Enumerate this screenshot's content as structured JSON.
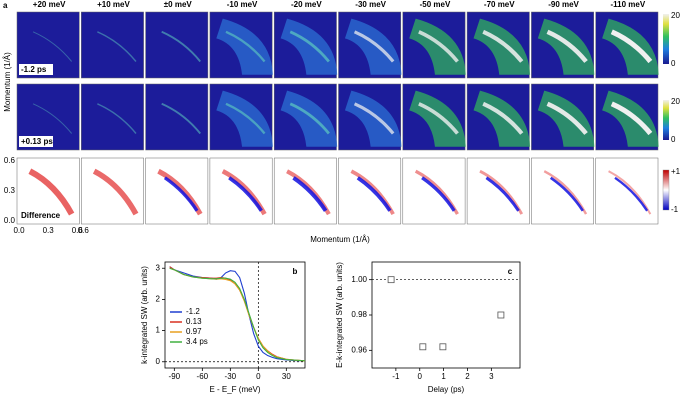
{
  "panel_a": {
    "label": "a",
    "columns": [
      "+20 meV",
      "+10 meV",
      "±0 meV",
      "-10 meV",
      "-20 meV",
      "-30 meV",
      "-50 meV",
      "-70 meV",
      "-90 meV",
      "-110 meV"
    ],
    "rows": [
      "-1.2 ps",
      "+0.13 ps",
      "Difference"
    ],
    "ylabel": "Momentum (1/Å)",
    "xlabel": "Momentum (1/Å)",
    "yticks": [
      "0.6",
      "0.3",
      "0.0"
    ],
    "xticks": [
      "0.0",
      "0.3",
      "0.6"
    ],
    "xtick_next": "0.6",
    "colorbar_top": [
      "20",
      "0"
    ],
    "colorbar_mid": [
      "20",
      "0"
    ],
    "colorbar_diff": [
      "+1",
      "-1"
    ]
  },
  "chart_data": [
    {
      "type": "line",
      "title": "b",
      "xlabel": "E - E_F (meV)",
      "ylabel": "k-integrated SW (arb. units)",
      "x": [
        -95,
        -90,
        -80,
        -70,
        -60,
        -50,
        -45,
        -40,
        -35,
        -30,
        -25,
        -20,
        -15,
        -10,
        -5,
        0,
        5,
        10,
        15,
        20,
        30,
        40,
        50
      ],
      "series": [
        {
          "name": "-1.2",
          "color": "#1f3fd0",
          "values": [
            3.05,
            2.95,
            2.85,
            2.75,
            2.7,
            2.68,
            2.65,
            2.7,
            2.85,
            2.92,
            2.9,
            2.7,
            2.2,
            1.5,
            0.9,
            0.5,
            0.3,
            0.2,
            0.14,
            0.1,
            0.06,
            0.04,
            0.03
          ]
        },
        {
          "name": "0.13",
          "color": "#d83020",
          "values": [
            3.05,
            2.95,
            2.8,
            2.72,
            2.7,
            2.68,
            2.68,
            2.7,
            2.68,
            2.62,
            2.5,
            2.3,
            1.95,
            1.5,
            1.1,
            0.75,
            0.5,
            0.35,
            0.24,
            0.16,
            0.08,
            0.05,
            0.03
          ]
        },
        {
          "name": "0.97",
          "color": "#e8a020",
          "values": [
            3.0,
            2.95,
            2.8,
            2.72,
            2.68,
            2.66,
            2.65,
            2.66,
            2.64,
            2.6,
            2.5,
            2.3,
            1.95,
            1.5,
            1.1,
            0.75,
            0.5,
            0.34,
            0.22,
            0.15,
            0.08,
            0.05,
            0.03
          ]
        },
        {
          "name": "3.4 ps",
          "color": "#40b040",
          "values": [
            3.0,
            2.95,
            2.8,
            2.72,
            2.68,
            2.66,
            2.66,
            2.68,
            2.68,
            2.65,
            2.55,
            2.35,
            2.0,
            1.55,
            1.1,
            0.7,
            0.45,
            0.3,
            0.2,
            0.13,
            0.07,
            0.05,
            0.03
          ]
        }
      ],
      "xlim": [
        -100,
        50
      ],
      "xticks": [
        -90,
        -60,
        -30,
        0,
        30
      ],
      "ylim": [
        -0.2,
        3.2
      ],
      "yticks": [
        0,
        1,
        2,
        3
      ],
      "vlines": [
        0
      ],
      "hlines": [
        0
      ]
    },
    {
      "type": "scatter",
      "title": "c",
      "xlabel": "Delay (ps)",
      "ylabel": "E-k-integrated SW (arb. units)",
      "x": [
        -1.2,
        0.13,
        0.97,
        3.4
      ],
      "series": [
        {
          "name": "SW",
          "color": "#555555",
          "values": [
            1.0,
            0.962,
            0.962,
            0.98
          ]
        }
      ],
      "xlim": [
        -2,
        4.2
      ],
      "xticks": [
        -1,
        0,
        1,
        2,
        3
      ],
      "ylim": [
        0.95,
        1.01
      ],
      "yticks": [
        0.96,
        0.98,
        {
          "value": 1,
          "label": "1.00"
        }
      ],
      "hlines": [
        1
      ]
    }
  ]
}
